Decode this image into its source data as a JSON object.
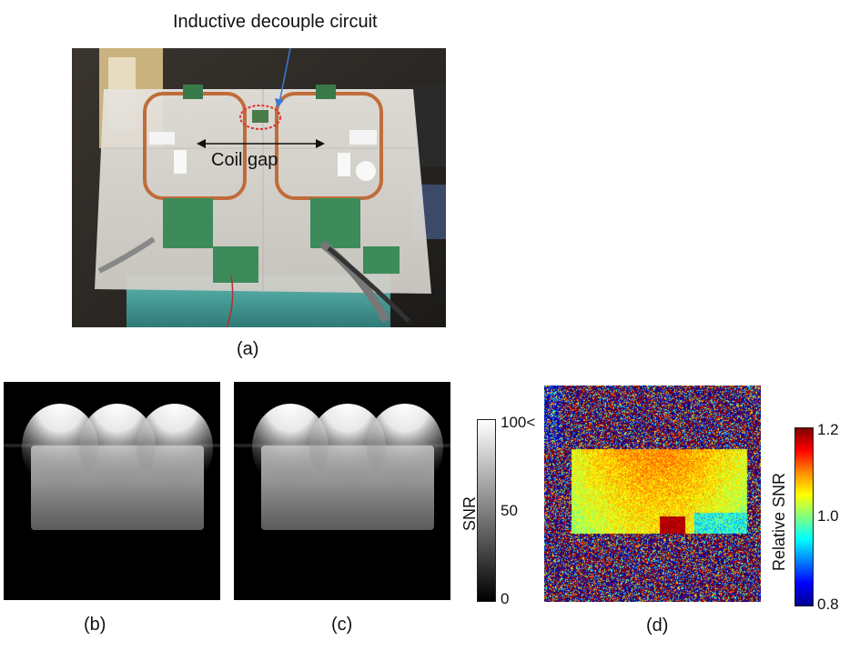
{
  "annotations": {
    "inductive_decouple": "Inductive decouple circuit",
    "coil_gap": "Coil gap"
  },
  "panel_labels": {
    "a": "(a)",
    "b": "(b)",
    "c": "(c)",
    "d": "(d)"
  },
  "snr_colorbar": {
    "label": "SNR",
    "ticks": [
      "100<",
      "50",
      "0"
    ]
  },
  "relative_colorbar": {
    "label": "Relative SNR",
    "ticks": [
      "1.2",
      "1.0",
      "0.8"
    ]
  }
}
